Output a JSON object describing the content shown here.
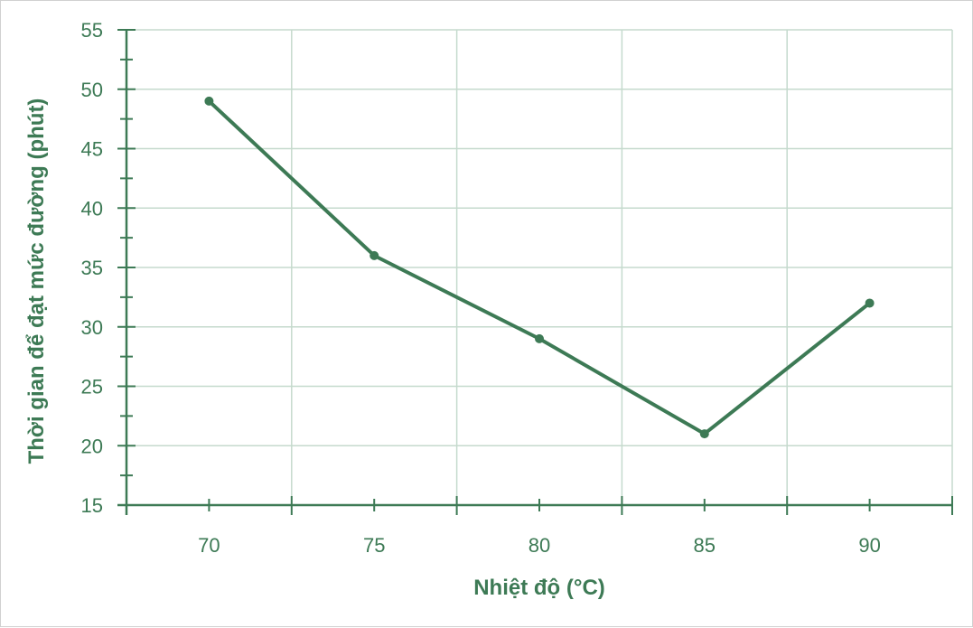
{
  "chart_data": {
    "type": "line",
    "title": "",
    "xlabel": "Nhiệt độ (°C)",
    "ylabel": "Thời gian để đạt mức đường (phút)",
    "categories": [
      "70",
      "75",
      "80",
      "85",
      "90"
    ],
    "series": [
      {
        "values": [
          49,
          36,
          29,
          21,
          32
        ]
      }
    ],
    "ylim": [
      15,
      55
    ],
    "yticks": [
      "15",
      "20",
      "25",
      "30",
      "35",
      "40",
      "45",
      "50",
      "55"
    ],
    "grid": true,
    "legend": "none",
    "colors": {
      "line": "#3d7a55",
      "grid": "#c5dacd",
      "text": "#3d7a55"
    }
  }
}
